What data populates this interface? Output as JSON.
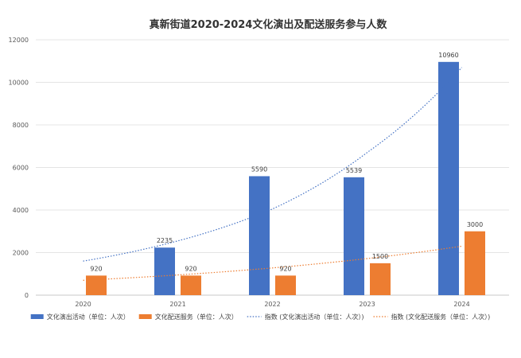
{
  "chart_data": {
    "type": "bar",
    "title": "真新街道2020-2024文化演出及配送服务参与人数",
    "categories": [
      "2020",
      "2021",
      "2022",
      "2023",
      "2024"
    ],
    "series": [
      {
        "name": "文化演出活动（单位：人次）",
        "values": [
          0,
          2235,
          5590,
          5539,
          10960
        ],
        "labels": [
          "",
          "2235",
          "5590",
          "5539",
          "10960"
        ],
        "color": "#4472C4"
      },
      {
        "name": "文化配送服务（单位：人次）",
        "values": [
          920,
          920,
          920,
          1500,
          3000
        ],
        "labels": [
          "920",
          "920",
          "920",
          "1500",
          "3000"
        ],
        "color": "#ED7D31"
      }
    ],
    "trendlines": [
      {
        "name": "指数 (文化演出活动（单位：人次）)",
        "type": "exponential",
        "values": [
          1600,
          2550,
          4050,
          6700,
          10700
        ],
        "color": "#4472C4"
      },
      {
        "name": "指数 (文化配送服务（单位：人次）)",
        "type": "exponential",
        "values": [
          700,
          950,
          1280,
          1720,
          2300
        ],
        "color": "#ED7D31"
      }
    ],
    "ylim": [
      0,
      12000
    ],
    "yticks": [
      "0",
      "2000",
      "4000",
      "6000",
      "8000",
      "10000",
      "12000"
    ],
    "grid": true,
    "legend_position": "bottom"
  }
}
